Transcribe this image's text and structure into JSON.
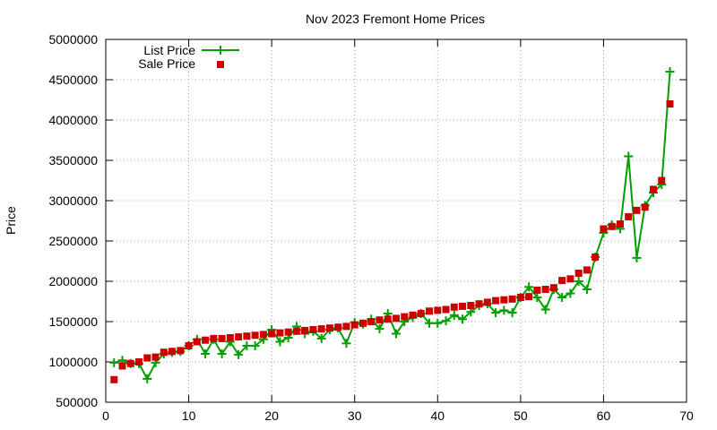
{
  "chart_data": {
    "type": "line",
    "title": "Nov 2023 Fremont Home Prices",
    "xlabel": "",
    "ylabel": "Price",
    "xlim": [
      0,
      70
    ],
    "ylim": [
      500000,
      5000000
    ],
    "x_ticks": [
      0,
      10,
      20,
      30,
      40,
      50,
      60,
      70
    ],
    "y_ticks": [
      500000,
      1000000,
      1500000,
      2000000,
      2500000,
      3000000,
      3500000,
      4000000,
      4500000,
      5000000
    ],
    "grid": true,
    "legend_position": "top-left",
    "colors": {
      "list": "#00a000",
      "sale": "#cc0000"
    },
    "x": [
      1,
      2,
      3,
      4,
      5,
      6,
      7,
      8,
      9,
      10,
      11,
      12,
      13,
      14,
      15,
      16,
      17,
      18,
      19,
      20,
      21,
      22,
      23,
      24,
      25,
      26,
      27,
      28,
      29,
      30,
      31,
      32,
      33,
      34,
      35,
      36,
      37,
      38,
      39,
      40,
      41,
      42,
      43,
      44,
      45,
      46,
      47,
      48,
      49,
      50,
      51,
      52,
      53,
      54,
      55,
      56,
      57,
      58,
      59,
      60,
      61,
      62,
      63,
      64,
      65,
      66,
      67,
      68
    ],
    "series": [
      {
        "name": "List Price",
        "style": "linespoints",
        "values": [
          990000,
          1020000,
          980000,
          980000,
          790000,
          990000,
          1100000,
          1120000,
          1130000,
          1200000,
          1280000,
          1100000,
          1280000,
          1100000,
          1250000,
          1090000,
          1200000,
          1200000,
          1280000,
          1400000,
          1250000,
          1300000,
          1440000,
          1350000,
          1380000,
          1290000,
          1400000,
          1420000,
          1230000,
          1490000,
          1470000,
          1530000,
          1410000,
          1600000,
          1350000,
          1500000,
          1550000,
          1600000,
          1480000,
          1480000,
          1510000,
          1580000,
          1530000,
          1620000,
          1700000,
          1720000,
          1610000,
          1640000,
          1610000,
          1800000,
          1930000,
          1800000,
          1650000,
          1900000,
          1800000,
          1850000,
          2000000,
          1900000,
          2300000,
          2600000,
          2700000,
          2650000,
          3550000,
          2290000,
          2940000,
          3100000,
          3200000,
          4600000
        ]
      },
      {
        "name": "Sale Price",
        "style": "points",
        "values": [
          780000,
          950000,
          980000,
          1000000,
          1050000,
          1060000,
          1120000,
          1130000,
          1140000,
          1200000,
          1250000,
          1270000,
          1290000,
          1290000,
          1300000,
          1310000,
          1320000,
          1330000,
          1340000,
          1350000,
          1360000,
          1370000,
          1380000,
          1390000,
          1400000,
          1410000,
          1420000,
          1430000,
          1440000,
          1460000,
          1480000,
          1500000,
          1520000,
          1530000,
          1540000,
          1560000,
          1580000,
          1600000,
          1630000,
          1640000,
          1650000,
          1680000,
          1690000,
          1700000,
          1720000,
          1740000,
          1760000,
          1770000,
          1780000,
          1800000,
          1810000,
          1890000,
          1900000,
          1920000,
          2010000,
          2030000,
          2100000,
          2140000,
          2300000,
          2650000,
          2680000,
          2710000,
          2800000,
          2880000,
          2920000,
          3140000,
          3250000,
          4200000
        ]
      }
    ]
  }
}
